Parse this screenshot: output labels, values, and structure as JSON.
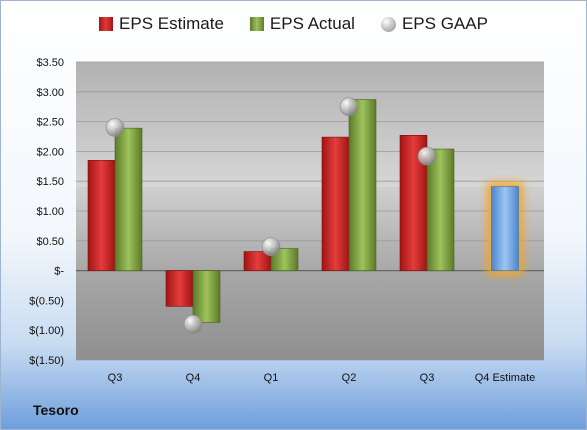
{
  "company": "Tesoro",
  "legend": {
    "estimate": "EPS Estimate",
    "actual": "EPS Actual",
    "gaap": "EPS GAAP"
  },
  "colors": {
    "estimate": "#d42a2a",
    "actual": "#8bb44b",
    "gaap": "#b0b0b0",
    "forecast": "#7aaee8",
    "forecast_glow": "#f5a623"
  },
  "chart_data": {
    "type": "bar",
    "categories": [
      "Q3",
      "Q4",
      "Q1",
      "Q2",
      "Q3",
      "Q4 Estimate"
    ],
    "series": [
      {
        "name": "EPS Estimate",
        "values": [
          1.85,
          -0.6,
          0.32,
          2.24,
          2.27,
          1.41
        ]
      },
      {
        "name": "EPS Actual",
        "values": [
          2.39,
          -0.87,
          0.37,
          2.87,
          2.04,
          null
        ]
      },
      {
        "name": "EPS GAAP",
        "values": [
          2.4,
          -0.9,
          0.4,
          2.75,
          1.92,
          null
        ]
      }
    ],
    "ylim": [
      -1.5,
      3.5
    ],
    "yticks": [
      3.5,
      3.0,
      2.5,
      2.0,
      1.5,
      1.0,
      0.5,
      0,
      -0.5,
      -1.0,
      -1.5
    ],
    "ytick_labels": [
      "$3.50",
      "$3.00",
      "$2.50",
      "$2.00",
      "$1.50",
      "$1.00",
      "$0.50",
      "$-",
      "$(0.50)",
      "$(1.00)",
      "$(1.50)"
    ],
    "grid": true,
    "legend_position": "top"
  }
}
